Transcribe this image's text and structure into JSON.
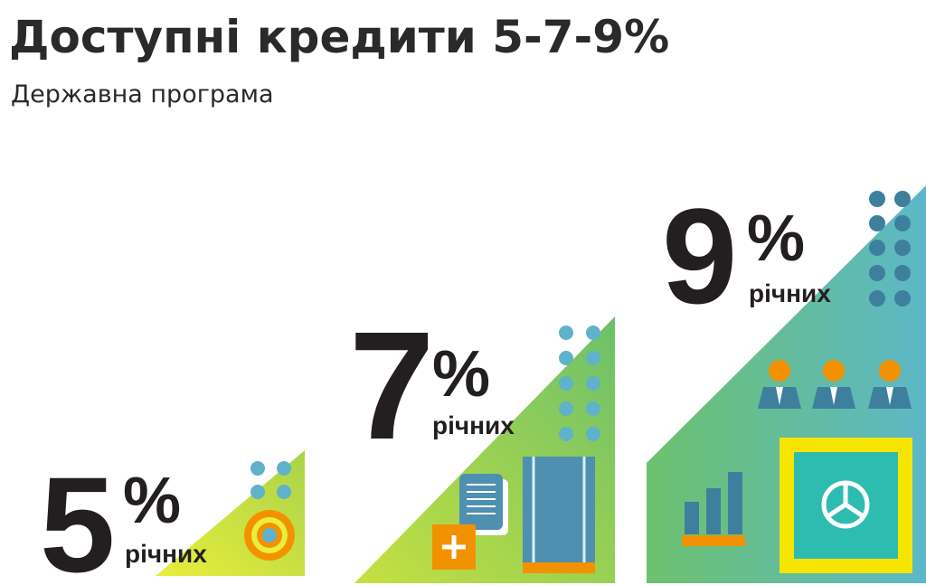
{
  "header": {
    "title": "Доступні кредити 5-7-9%",
    "subtitle": "Державна програма"
  },
  "tiers": [
    {
      "rate": "5",
      "unit": "%",
      "label": "річних"
    },
    {
      "rate": "7",
      "unit": "%",
      "label": "річних"
    },
    {
      "rate": "9",
      "unit": "%",
      "label": "річних"
    }
  ]
}
